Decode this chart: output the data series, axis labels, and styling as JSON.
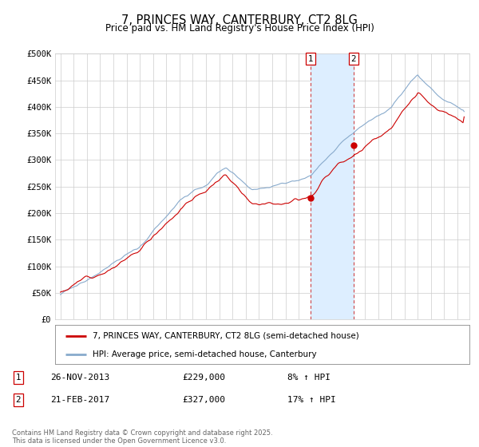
{
  "title": "7, PRINCES WAY, CANTERBURY, CT2 8LG",
  "subtitle": "Price paid vs. HM Land Registry's House Price Index (HPI)",
  "ytick_labels": [
    "£0",
    "£50K",
    "£100K",
    "£150K",
    "£200K",
    "£250K",
    "£300K",
    "£350K",
    "£400K",
    "£450K",
    "£500K"
  ],
  "yticks": [
    0,
    50000,
    100000,
    150000,
    200000,
    250000,
    300000,
    350000,
    400000,
    450000,
    500000
  ],
  "legend_line1": "7, PRINCES WAY, CANTERBURY, CT2 8LG (semi-detached house)",
  "legend_line2": "HPI: Average price, semi-detached house, Canterbury",
  "annotation1_date": "26-NOV-2013",
  "annotation1_price": "£229,000",
  "annotation1_hpi": "8% ↑ HPI",
  "annotation2_date": "21-FEB-2017",
  "annotation2_price": "£327,000",
  "annotation2_hpi": "17% ↑ HPI",
  "footer": "Contains HM Land Registry data © Crown copyright and database right 2025.\nThis data is licensed under the Open Government Licence v3.0.",
  "line1_color": "#cc0000",
  "line2_color": "#88aacc",
  "shade_color": "#ddeeff",
  "vline_color": "#cc3333",
  "background_color": "#ffffff",
  "grid_color": "#cccccc",
  "sale1_year": 2013.9,
  "sale1_value": 229000,
  "sale2_year": 2017.15,
  "sale2_value": 327000
}
